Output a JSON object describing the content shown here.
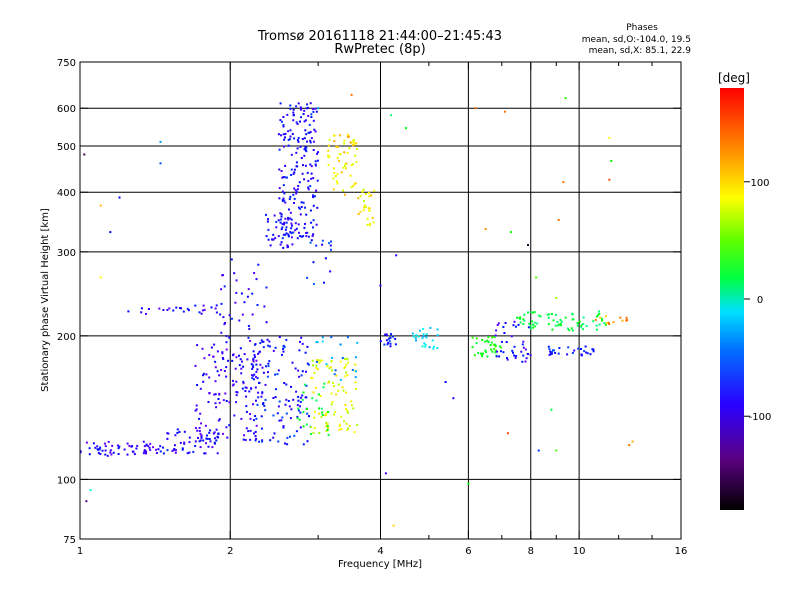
{
  "chart_data": {
    "type": "scatter",
    "title": "Tromsø 20161118 21:44:00–21:45:43",
    "subtitle": "RwPretec (8p)",
    "xlabel": "Frequency [MHz]",
    "ylabel": "Stationary phase Virtual Height [km]",
    "x_scale": "log",
    "y_scale": "log",
    "xlim": [
      1,
      16
    ],
    "ylim": [
      75,
      750
    ],
    "x_ticks": [
      1,
      2,
      4,
      6,
      8,
      10,
      16
    ],
    "x_tick_labels": [
      "1",
      "2",
      "4",
      "6",
      "8",
      "10",
      "16"
    ],
    "x_minor_ticks": [
      3,
      5,
      7,
      9,
      12,
      14
    ],
    "y_ticks": [
      75,
      100,
      200,
      300,
      400,
      500,
      600,
      750
    ],
    "y_tick_labels": [
      "75",
      "100",
      "200",
      "300",
      "400",
      "500",
      "600",
      "750"
    ],
    "grid_x": [
      2,
      4,
      6,
      8,
      10
    ],
    "grid_y": [
      100,
      200,
      300,
      400,
      500,
      600
    ],
    "legend": {
      "title": "Phases",
      "line1": "mean, sd,O:-104.0, 19.5",
      "line2": "mean, sd,X: 85.1, 22.9"
    },
    "colorbar": {
      "label": "[deg]",
      "range": [
        -180,
        180
      ],
      "ticks": [
        100,
        0,
        -100
      ],
      "tick_labels": [
        "100",
        "0",
        "-100"
      ]
    },
    "colors": {
      "grid": "#000000",
      "o_mode": "#1a3cff",
      "x_mode": "#e6e600"
    },
    "clusters": [
      {
        "x": [
          1.0,
          1.45
        ],
        "y": [
          112,
          120
        ],
        "phase": -115,
        "n": 60
      },
      {
        "x": [
          1.45,
          1.9
        ],
        "y": [
          113,
          128
        ],
        "phase": -110,
        "n": 60
      },
      {
        "x": [
          1.7,
          2.3
        ],
        "y": [
          120,
          195
        ],
        "phase": -115,
        "n": 120
      },
      {
        "x": [
          1.9,
          2.4
        ],
        "y": [
          150,
          290
        ],
        "phase": -110,
        "n": 60
      },
      {
        "x": [
          1.3,
          1.9
        ],
        "y": [
          222,
          232
        ],
        "phase": -112,
        "n": 25
      },
      {
        "x": [
          2.2,
          2.9
        ],
        "y": [
          118,
          200
        ],
        "phase": -100,
        "n": 130
      },
      {
        "x": [
          2.5,
          3.0
        ],
        "y": [
          320,
          620
        ],
        "phase": -105,
        "n": 200
      },
      {
        "x": [
          2.35,
          2.7
        ],
        "y": [
          305,
          360
        ],
        "phase": -105,
        "n": 40
      },
      {
        "x": [
          2.9,
          3.6
        ],
        "y": [
          125,
          180
        ],
        "phase": 100,
        "n": 90
      },
      {
        "x": [
          2.7,
          3.15
        ],
        "y": [
          120,
          160
        ],
        "phase": 25,
        "n": 25
      },
      {
        "x": [
          3.1,
          3.6
        ],
        "y": [
          395,
          530
        ],
        "phase": 115,
        "n": 60
      },
      {
        "x": [
          3.6,
          3.9
        ],
        "y": [
          340,
          410
        ],
        "phase": 110,
        "n": 25
      },
      {
        "x": [
          2.85,
          3.2
        ],
        "y": [
          250,
          320
        ],
        "phase": -90,
        "n": 15
      },
      {
        "x": [
          2.9,
          3.6
        ],
        "y": [
          160,
          200
        ],
        "phase": -60,
        "n": 20
      },
      {
        "x": [
          4.0,
          4.3
        ],
        "y": [
          190,
          202
        ],
        "phase": -95,
        "n": 18
      },
      {
        "x": [
          4.6,
          5.3
        ],
        "y": [
          188,
          208
        ],
        "phase": -40,
        "n": 25
      },
      {
        "x": [
          6.1,
          7.0
        ],
        "y": [
          180,
          200
        ],
        "phase": 40,
        "n": 35
      },
      {
        "x": [
          6.8,
          8.0
        ],
        "y": [
          175,
          215
        ],
        "phase": -110,
        "n": 40
      },
      {
        "x": [
          7.5,
          11.5
        ],
        "y": [
          205,
          225
        ],
        "phase": 20,
        "n": 70
      },
      {
        "x": [
          8.5,
          10.8
        ],
        "y": [
          182,
          190
        ],
        "phase": -100,
        "n": 30
      },
      {
        "x": [
          10.5,
          12.5
        ],
        "y": [
          210,
          220
        ],
        "phase": 140,
        "n": 12
      }
    ],
    "outliers": [
      {
        "x": 1.03,
        "y": 90,
        "phase": -140
      },
      {
        "x": 1.05,
        "y": 95,
        "phase": -20
      },
      {
        "x": 1.02,
        "y": 480,
        "phase": -150
      },
      {
        "x": 1.1,
        "y": 375,
        "phase": 130
      },
      {
        "x": 1.15,
        "y": 330,
        "phase": -100
      },
      {
        "x": 1.2,
        "y": 390,
        "phase": -100
      },
      {
        "x": 1.25,
        "y": 225,
        "phase": -100
      },
      {
        "x": 1.45,
        "y": 510,
        "phase": -60
      },
      {
        "x": 1.45,
        "y": 460,
        "phase": -80
      },
      {
        "x": 1.1,
        "y": 265,
        "phase": 110
      },
      {
        "x": 3.5,
        "y": 640,
        "phase": 150
      },
      {
        "x": 3.0,
        "y": 600,
        "phase": -60
      },
      {
        "x": 4.2,
        "y": 580,
        "phase": 10
      },
      {
        "x": 4.5,
        "y": 545,
        "phase": 40
      },
      {
        "x": 4.3,
        "y": 295,
        "phase": -110
      },
      {
        "x": 4.0,
        "y": 255,
        "phase": -110
      },
      {
        "x": 4.1,
        "y": 103,
        "phase": -120
      },
      {
        "x": 4.25,
        "y": 80,
        "phase": 120
      },
      {
        "x": 5.4,
        "y": 160,
        "phase": -100
      },
      {
        "x": 5.6,
        "y": 148,
        "phase": -110
      },
      {
        "x": 6.0,
        "y": 98,
        "phase": 40
      },
      {
        "x": 6.2,
        "y": 600,
        "phase": 150
      },
      {
        "x": 7.1,
        "y": 590,
        "phase": 150
      },
      {
        "x": 6.5,
        "y": 335,
        "phase": 140
      },
      {
        "x": 7.3,
        "y": 330,
        "phase": 40
      },
      {
        "x": 7.9,
        "y": 310,
        "phase": -160
      },
      {
        "x": 8.2,
        "y": 265,
        "phase": 60
      },
      {
        "x": 9.0,
        "y": 240,
        "phase": 80
      },
      {
        "x": 7.2,
        "y": 125,
        "phase": 160
      },
      {
        "x": 8.3,
        "y": 115,
        "phase": -90
      },
      {
        "x": 8.8,
        "y": 140,
        "phase": 20
      },
      {
        "x": 9.4,
        "y": 630,
        "phase": 50
      },
      {
        "x": 9.3,
        "y": 420,
        "phase": 150
      },
      {
        "x": 9.1,
        "y": 350,
        "phase": 150
      },
      {
        "x": 11.5,
        "y": 520,
        "phase": 110
      },
      {
        "x": 11.6,
        "y": 465,
        "phase": 40
      },
      {
        "x": 11.5,
        "y": 425,
        "phase": 160
      },
      {
        "x": 12.8,
        "y": 120,
        "phase": 130
      },
      {
        "x": 12.6,
        "y": 118,
        "phase": 150
      },
      {
        "x": 9.0,
        "y": 115,
        "phase": 60
      }
    ]
  }
}
